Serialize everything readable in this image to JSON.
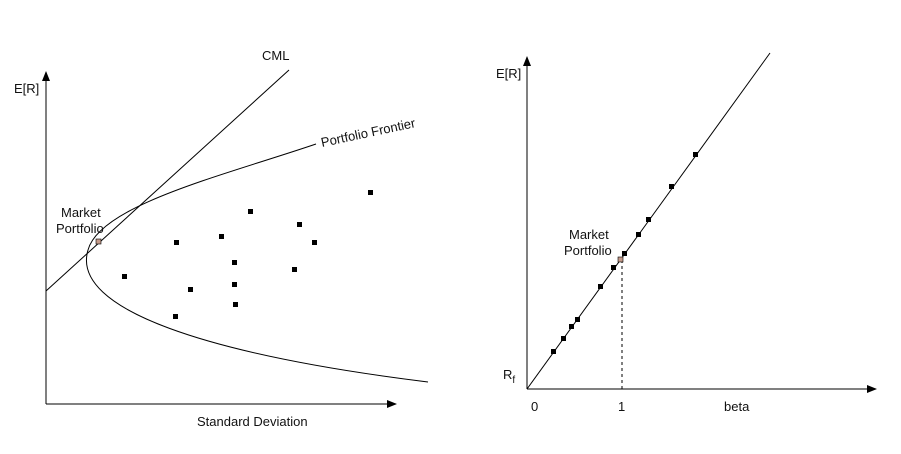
{
  "left_panel": {
    "y_axis_label": "E[R]",
    "x_axis_label": "Standard Deviation",
    "cml_label": "CML",
    "frontier_label": "Portfolio Frontier",
    "market_label_line1": "Market",
    "market_label_line2": "Portfolio",
    "asset_count": 14
  },
  "right_panel": {
    "y_axis_label": "E[R]",
    "x_axis_label": "beta",
    "rf_label_main": "R",
    "rf_label_sub": "f",
    "tick_0": "0",
    "tick_1": "1",
    "market_label_line1": "Market",
    "market_label_line2": "Portfolio",
    "line_point_count": 12
  },
  "colors": {
    "ink": "#000000",
    "market_marker": "#c49a8a"
  }
}
